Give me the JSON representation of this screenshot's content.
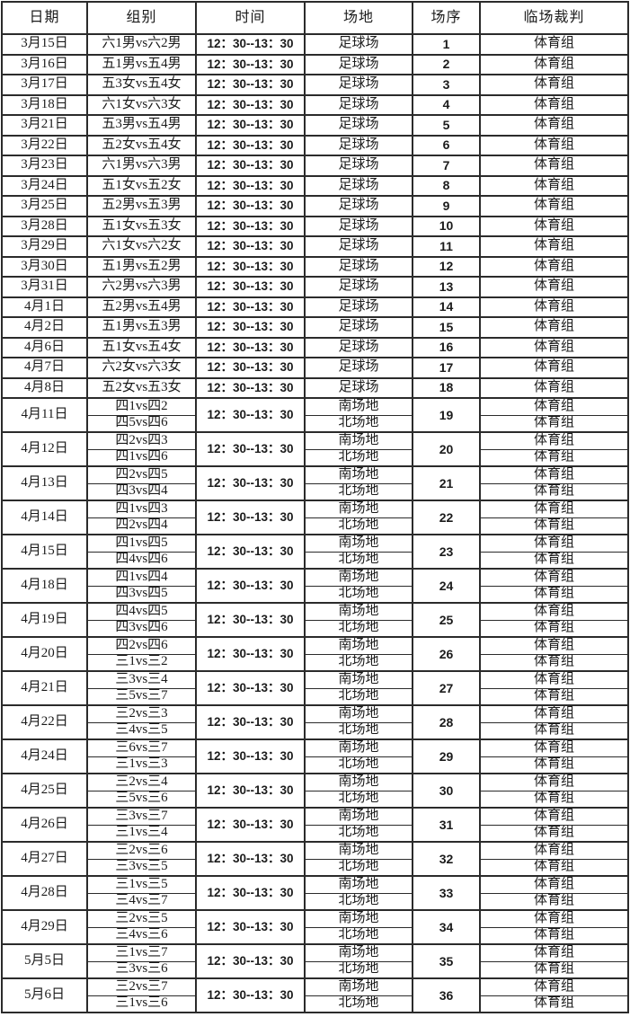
{
  "page": {
    "background_color": "#ffffff",
    "border_color": "#2b2b2b",
    "text_color": "#1b1b1b"
  },
  "table": {
    "headers": [
      "日期",
      "组别",
      "时间",
      "场地",
      "场序",
      "临场裁判"
    ],
    "single_rows": [
      {
        "date": "3月15日",
        "group": "六1男vs六2男",
        "time": "12：30--13：30",
        "venue": "足球场",
        "no": "1",
        "ref": "体育组"
      },
      {
        "date": "3月16日",
        "group": "五1男vs五4男",
        "time": "12：30--13：30",
        "venue": "足球场",
        "no": "2",
        "ref": "体育组"
      },
      {
        "date": "3月17日",
        "group": "五3女vs五4女",
        "time": "12：30--13：30",
        "venue": "足球场",
        "no": "3",
        "ref": "体育组"
      },
      {
        "date": "3月18日",
        "group": "六1女vs六3女",
        "time": "12：30--13：30",
        "venue": "足球场",
        "no": "4",
        "ref": "体育组"
      },
      {
        "date": "3月21日",
        "group": "五3男vs五4男",
        "time": "12：30--13：30",
        "venue": "足球场",
        "no": "5",
        "ref": "体育组"
      },
      {
        "date": "3月22日",
        "group": "五2女vs五4女",
        "time": "12：30--13：30",
        "venue": "足球场",
        "no": "6",
        "ref": "体育组"
      },
      {
        "date": "3月23日",
        "group": "六1男vs六3男",
        "time": "12：30--13：30",
        "venue": "足球场",
        "no": "7",
        "ref": "体育组"
      },
      {
        "date": "3月24日",
        "group": "五1女vs五2女",
        "time": "12：30--13：30",
        "venue": "足球场",
        "no": "8",
        "ref": "体育组"
      },
      {
        "date": "3月25日",
        "group": "五2男vs五3男",
        "time": "12：30--13：30",
        "venue": "足球场",
        "no": "9",
        "ref": "体育组"
      },
      {
        "date": "3月28日",
        "group": "五1女vs五3女",
        "time": "12：30--13：30",
        "venue": "足球场",
        "no": "10",
        "ref": "体育组"
      },
      {
        "date": "3月29日",
        "group": "六1女vs六2女",
        "time": "12：30--13：30",
        "venue": "足球场",
        "no": "11",
        "ref": "体育组"
      },
      {
        "date": "3月30日",
        "group": "五1男vs五2男",
        "time": "12：30--13：30",
        "venue": "足球场",
        "no": "12",
        "ref": "体育组"
      },
      {
        "date": "3月31日",
        "group": "六2男vs六3男",
        "time": "12：30--13：30",
        "venue": "足球场",
        "no": "13",
        "ref": "体育组"
      },
      {
        "date": "4月1日",
        "group": "五2男vs五4男",
        "time": "12：30--13：30",
        "venue": "足球场",
        "no": "14",
        "ref": "体育组"
      },
      {
        "date": "4月2日",
        "group": "五1男vs五3男",
        "time": "12：30--13：30",
        "venue": "足球场",
        "no": "15",
        "ref": "体育组"
      },
      {
        "date": "4月6日",
        "group": "五1女vs五4女",
        "time": "12：30--13：30",
        "venue": "足球场",
        "no": "16",
        "ref": "体育组"
      },
      {
        "date": "4月7日",
        "group": "六2女vs六3女",
        "time": "12：30--13：30",
        "venue": "足球场",
        "no": "17",
        "ref": "体育组"
      },
      {
        "date": "4月8日",
        "group": "五2女vs五3女",
        "time": "12：30--13：30",
        "venue": "足球场",
        "no": "18",
        "ref": "体育组"
      }
    ],
    "double_rows": [
      {
        "date": "4月11日",
        "groups": [
          "四1vs四2",
          "四5vs四6"
        ],
        "time": "12：30--13：30",
        "venues": [
          "南场地",
          "北场地"
        ],
        "no": "19",
        "refs": [
          "体育组",
          "体育组"
        ]
      },
      {
        "date": "4月12日",
        "groups": [
          "四2vs四3",
          "四1vs四6"
        ],
        "time": "12：30--13：30",
        "venues": [
          "南场地",
          "北场地"
        ],
        "no": "20",
        "refs": [
          "体育组",
          "体育组"
        ]
      },
      {
        "date": "4月13日",
        "groups": [
          "四2vs四5",
          "四3vs四4"
        ],
        "time": "12：30--13：30",
        "venues": [
          "南场地",
          "北场地"
        ],
        "no": "21",
        "refs": [
          "体育组",
          "体育组"
        ]
      },
      {
        "date": "4月14日",
        "groups": [
          "四1vs四3",
          "四2vs四4"
        ],
        "time": "12：30--13：30",
        "venues": [
          "南场地",
          "北场地"
        ],
        "no": "22",
        "refs": [
          "体育组",
          "体育组"
        ]
      },
      {
        "date": "4月15日",
        "groups": [
          "四1vs四5",
          "四4vs四6"
        ],
        "time": "12：30--13：30",
        "venues": [
          "南场地",
          "北场地"
        ],
        "no": "23",
        "refs": [
          "体育组",
          "体育组"
        ]
      },
      {
        "date": "4月18日",
        "groups": [
          "四1vs四4",
          "四3vs四5"
        ],
        "time": "12：30--13：30",
        "venues": [
          "南场地",
          "北场地"
        ],
        "no": "24",
        "refs": [
          "体育组",
          "体育组"
        ]
      },
      {
        "date": "4月19日",
        "groups": [
          "四4vs四5",
          "四3vs四6"
        ],
        "time": "12：30--13：30",
        "venues": [
          "南场地",
          "北场地"
        ],
        "no": "25",
        "refs": [
          "体育组",
          "体育组"
        ]
      },
      {
        "date": "4月20日",
        "groups": [
          "四2vs四6",
          "三1vs三2"
        ],
        "time": "12：30--13：30",
        "venues": [
          "南场地",
          "北场地"
        ],
        "no": "26",
        "refs": [
          "体育组",
          "体育组"
        ]
      },
      {
        "date": "4月21日",
        "groups": [
          "三3vs三4",
          "三5vs三7"
        ],
        "time": "12：30--13：30",
        "venues": [
          "南场地",
          "北场地"
        ],
        "no": "27",
        "refs": [
          "体育组",
          "体育组"
        ]
      },
      {
        "date": "4月22日",
        "groups": [
          "三2vs三3",
          "三4vs三5"
        ],
        "time": "12：30--13：30",
        "venues": [
          "南场地",
          "北场地"
        ],
        "no": "28",
        "refs": [
          "体育组",
          "体育组"
        ]
      },
      {
        "date": "4月24日",
        "groups": [
          "三6vs三7",
          "三1vs三3"
        ],
        "time": "12：30--13：30",
        "venues": [
          "南场地",
          "北场地"
        ],
        "no": "29",
        "refs": [
          "体育组",
          "体育组"
        ]
      },
      {
        "date": "4月25日",
        "groups": [
          "三2vs三4",
          "三5vs三6"
        ],
        "time": "12：30--13：30",
        "venues": [
          "南场地",
          "北场地"
        ],
        "no": "30",
        "refs": [
          "体育组",
          "体育组"
        ]
      },
      {
        "date": "4月26日",
        "groups": [
          "三3vs三7",
          "三1vs三4"
        ],
        "time": "12：30--13：30",
        "venues": [
          "南场地",
          "北场地"
        ],
        "no": "31",
        "refs": [
          "体育组",
          "体育组"
        ]
      },
      {
        "date": "4月27日",
        "groups": [
          "三2vs三6",
          "三3vs三5"
        ],
        "time": "12：30--13：30",
        "venues": [
          "南场地",
          "北场地"
        ],
        "no": "32",
        "refs": [
          "体育组",
          "体育组"
        ]
      },
      {
        "date": "4月28日",
        "groups": [
          "三1vs三5",
          "三4vs三7"
        ],
        "time": "12：30--13：30",
        "venues": [
          "南场地",
          "北场地"
        ],
        "no": "33",
        "refs": [
          "体育组",
          "体育组"
        ]
      },
      {
        "date": "4月29日",
        "groups": [
          "三2vs三5",
          "三4vs三6"
        ],
        "time": "12：30--13：30",
        "venues": [
          "南场地",
          "北场地"
        ],
        "no": "34",
        "refs": [
          "体育组",
          "体育组"
        ]
      },
      {
        "date": "5月5日",
        "groups": [
          "三1vs三7",
          "三3vs三6"
        ],
        "time": "12：30--13：30",
        "venues": [
          "南场地",
          "北场地"
        ],
        "no": "35",
        "refs": [
          "体育组",
          "体育组"
        ]
      },
      {
        "date": "5月6日",
        "groups": [
          "三2vs三7",
          "三1vs三6"
        ],
        "time": "12：30--13：30",
        "venues": [
          "南场地",
          "北场地"
        ],
        "no": "36",
        "refs": [
          "体育组",
          "体育组"
        ]
      }
    ]
  }
}
